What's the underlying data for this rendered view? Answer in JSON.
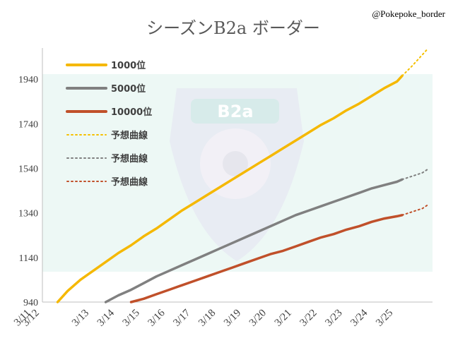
{
  "handle": "@Pokepoke_border",
  "chart_data": {
    "type": "line",
    "title": "シーズンB2a ボーダー",
    "xlabel": "",
    "ylabel": "",
    "ylim": [
      940,
      2080
    ],
    "yticks": [
      940,
      1140,
      1340,
      1540,
      1740,
      1940
    ],
    "xticks": [
      "3/11",
      "3/12",
      "3/13",
      "3/14",
      "3/15",
      "3/16",
      "3/17",
      "3/18",
      "3/19",
      "3/20",
      "3/21",
      "3/22",
      "3/23",
      "3/24",
      "3/25"
    ],
    "legend_position": "top-left",
    "grid": false,
    "series": [
      {
        "name": "1000位",
        "style": "solid",
        "color": "#f5b800",
        "points": [
          [
            0.6,
            940
          ],
          [
            1,
            990
          ],
          [
            1.5,
            1040
          ],
          [
            2,
            1080
          ],
          [
            2.5,
            1120
          ],
          [
            3,
            1160
          ],
          [
            3.5,
            1195
          ],
          [
            4,
            1235
          ],
          [
            4.5,
            1270
          ],
          [
            5,
            1310
          ],
          [
            5.5,
            1350
          ],
          [
            6,
            1385
          ],
          [
            6.5,
            1420
          ],
          [
            7,
            1455
          ],
          [
            7.5,
            1490
          ],
          [
            8,
            1525
          ],
          [
            8.5,
            1560
          ],
          [
            9,
            1595
          ],
          [
            9.5,
            1630
          ],
          [
            10,
            1665
          ],
          [
            10.5,
            1700
          ],
          [
            11,
            1735
          ],
          [
            11.5,
            1765
          ],
          [
            12,
            1800
          ],
          [
            12.5,
            1830
          ],
          [
            13,
            1865
          ],
          [
            13.5,
            1900
          ],
          [
            14,
            1930
          ],
          [
            14.2,
            1955
          ]
        ]
      },
      {
        "name": "5000位",
        "style": "solid",
        "color": "#808080",
        "points": [
          [
            2.5,
            940
          ],
          [
            3,
            970
          ],
          [
            3.5,
            995
          ],
          [
            4,
            1025
          ],
          [
            4.5,
            1055
          ],
          [
            5,
            1080
          ],
          [
            5.5,
            1105
          ],
          [
            6,
            1130
          ],
          [
            6.5,
            1155
          ],
          [
            7,
            1180
          ],
          [
            7.5,
            1205
          ],
          [
            8,
            1230
          ],
          [
            8.5,
            1255
          ],
          [
            9,
            1280
          ],
          [
            9.5,
            1305
          ],
          [
            10,
            1330
          ],
          [
            10.5,
            1350
          ],
          [
            11,
            1370
          ],
          [
            11.5,
            1390
          ],
          [
            12,
            1410
          ],
          [
            12.5,
            1430
          ],
          [
            13,
            1450
          ],
          [
            13.5,
            1465
          ],
          [
            14,
            1480
          ],
          [
            14.2,
            1490
          ]
        ]
      },
      {
        "name": "10000位",
        "style": "solid",
        "color": "#c0502a",
        "points": [
          [
            3.5,
            940
          ],
          [
            4,
            955
          ],
          [
            4.5,
            975
          ],
          [
            5,
            995
          ],
          [
            5.5,
            1015
          ],
          [
            6,
            1035
          ],
          [
            6.5,
            1055
          ],
          [
            7,
            1075
          ],
          [
            7.5,
            1095
          ],
          [
            8,
            1115
          ],
          [
            8.5,
            1135
          ],
          [
            9,
            1155
          ],
          [
            9.5,
            1170
          ],
          [
            10,
            1190
          ],
          [
            10.5,
            1210
          ],
          [
            11,
            1230
          ],
          [
            11.5,
            1245
          ],
          [
            12,
            1265
          ],
          [
            12.5,
            1280
          ],
          [
            13,
            1300
          ],
          [
            13.5,
            1315
          ],
          [
            14,
            1325
          ],
          [
            14.2,
            1330
          ]
        ]
      },
      {
        "name": "予想曲線",
        "style": "dotted",
        "color": "#f5c000",
        "points": [
          [
            14.2,
            1955
          ],
          [
            14.6,
            2000
          ],
          [
            15,
            2050
          ],
          [
            15.2,
            2075
          ]
        ]
      },
      {
        "name": "予想曲線",
        "style": "dotted",
        "color": "#7f7f7f",
        "points": [
          [
            14.2,
            1490
          ],
          [
            14.6,
            1505
          ],
          [
            15,
            1520
          ],
          [
            15.2,
            1535
          ]
        ]
      },
      {
        "name": "予想曲線",
        "style": "dotted",
        "color": "#c0502a",
        "points": [
          [
            14.2,
            1330
          ],
          [
            14.6,
            1345
          ],
          [
            15,
            1360
          ],
          [
            15.2,
            1375
          ]
        ]
      }
    ]
  }
}
